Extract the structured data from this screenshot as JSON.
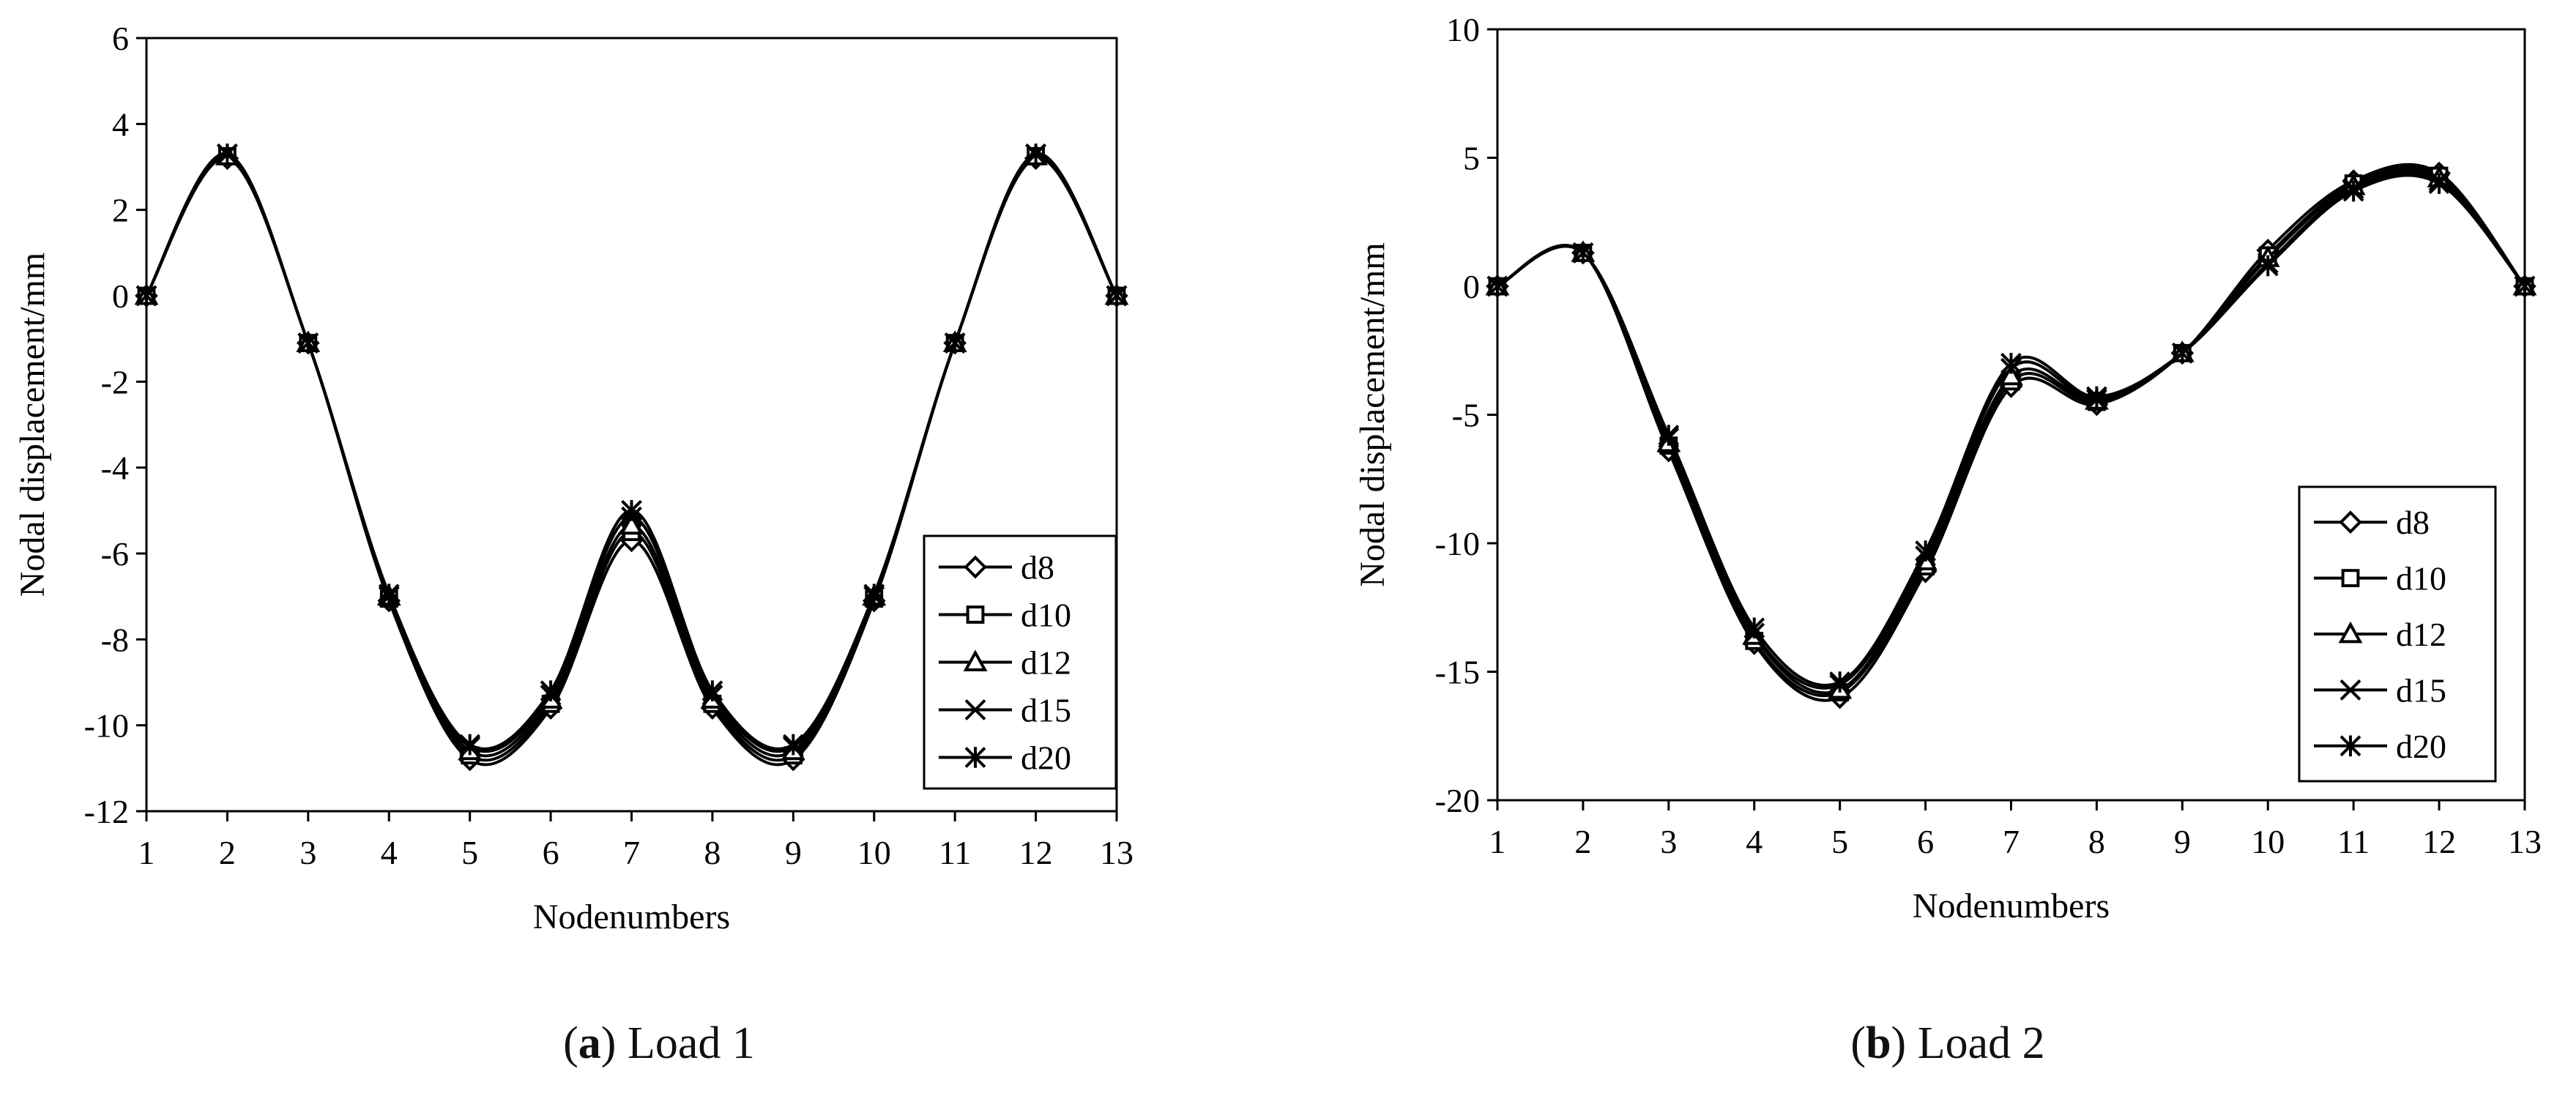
{
  "chart_data": [
    {
      "type": "line",
      "panel": "a",
      "caption_letter": "a",
      "caption_text": "Load 1",
      "xlabel": "Nodenumbers",
      "ylabel": "Nodal displacement/mm",
      "xlim": [
        1,
        13
      ],
      "ylim": [
        -12,
        6
      ],
      "yticks": [
        6,
        4,
        2,
        0,
        -2,
        -4,
        -6,
        -8,
        -10,
        -12
      ],
      "xticks": [
        1,
        2,
        3,
        4,
        5,
        6,
        7,
        8,
        9,
        10,
        11,
        12,
        13
      ],
      "legend_position": "bottom-right",
      "x": [
        1,
        2,
        3,
        4,
        5,
        6,
        7,
        8,
        9,
        10,
        11,
        12,
        13
      ],
      "series": [
        {
          "name": "d8",
          "marker": "diamond",
          "values": [
            0,
            3.2,
            -1.1,
            -7.1,
            -10.8,
            -9.6,
            -5.7,
            -9.6,
            -10.8,
            -7.1,
            -1.1,
            3.2,
            0
          ]
        },
        {
          "name": "d10",
          "marker": "square",
          "values": [
            0,
            3.25,
            -1.1,
            -7.05,
            -10.7,
            -9.5,
            -5.5,
            -9.5,
            -10.7,
            -7.05,
            -1.1,
            3.25,
            0
          ]
        },
        {
          "name": "d12",
          "marker": "triangle",
          "values": [
            0,
            3.25,
            -1.1,
            -7.0,
            -10.6,
            -9.4,
            -5.35,
            -9.4,
            -10.6,
            -7.0,
            -1.1,
            3.25,
            0
          ]
        },
        {
          "name": "d15",
          "marker": "x",
          "values": [
            0,
            3.3,
            -1.1,
            -7.0,
            -10.5,
            -9.3,
            -5.15,
            -9.3,
            -10.5,
            -7.0,
            -1.1,
            3.3,
            0
          ]
        },
        {
          "name": "d20",
          "marker": "star",
          "values": [
            0,
            3.3,
            -1.1,
            -6.95,
            -10.45,
            -9.2,
            -5.0,
            -9.2,
            -10.45,
            -6.95,
            -1.1,
            3.3,
            0
          ]
        }
      ]
    },
    {
      "type": "line",
      "panel": "b",
      "caption_letter": "b",
      "caption_text": "Load 2",
      "xlabel": "Nodenumbers",
      "ylabel": "Nodal displacement/mm",
      "xlim": [
        1,
        13
      ],
      "ylim": [
        -20,
        10
      ],
      "yticks": [
        10,
        5,
        0,
        -5,
        -10,
        -15,
        -20
      ],
      "xticks": [
        1,
        2,
        3,
        4,
        5,
        6,
        7,
        8,
        9,
        10,
        11,
        12,
        13
      ],
      "legend_position": "bottom-right",
      "x": [
        1,
        2,
        3,
        4,
        5,
        6,
        7,
        8,
        9,
        10,
        11,
        12,
        13
      ],
      "series": [
        {
          "name": "d8",
          "marker": "diamond",
          "values": [
            0,
            1.3,
            -6.4,
            -13.9,
            -16.0,
            -11.1,
            -3.9,
            -4.6,
            -2.6,
            1.4,
            4.1,
            4.4,
            0
          ]
        },
        {
          "name": "d10",
          "marker": "square",
          "values": [
            0,
            1.3,
            -6.2,
            -13.8,
            -15.8,
            -10.9,
            -3.7,
            -4.5,
            -2.6,
            1.2,
            4.0,
            4.3,
            0
          ]
        },
        {
          "name": "d12",
          "marker": "triangle",
          "values": [
            0,
            1.3,
            -6.1,
            -13.6,
            -15.7,
            -10.7,
            -3.5,
            -4.45,
            -2.6,
            1.1,
            3.9,
            4.2,
            0
          ]
        },
        {
          "name": "d15",
          "marker": "x",
          "values": [
            0,
            1.3,
            -5.9,
            -13.5,
            -15.5,
            -10.5,
            -3.2,
            -4.4,
            -2.6,
            0.9,
            3.8,
            4.1,
            0
          ]
        },
        {
          "name": "d20",
          "marker": "star",
          "values": [
            0,
            1.3,
            -5.8,
            -13.3,
            -15.4,
            -10.3,
            -3.0,
            -4.3,
            -2.6,
            0.8,
            3.7,
            4.0,
            0
          ]
        }
      ]
    }
  ]
}
